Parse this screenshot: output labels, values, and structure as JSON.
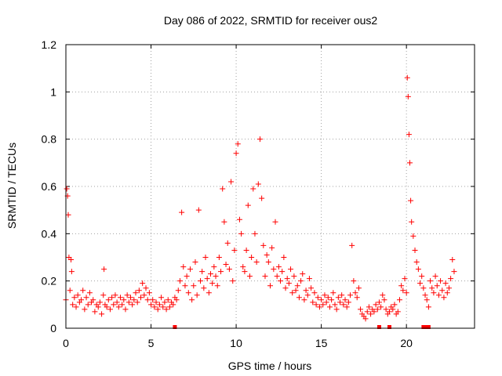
{
  "chart_data": {
    "type": "scatter",
    "title": "Day 086 of 2022, SRMTID for receiver ous2",
    "xlabel": "GPS time / hours",
    "ylabel": "SRMTID / TECUs",
    "xlim": [
      0,
      24
    ],
    "ylim": [
      0,
      1.2
    ],
    "x_ticks": [
      0,
      5,
      10,
      15,
      20
    ],
    "x_tick_labels": [
      "0",
      "5",
      "10",
      "15",
      "20"
    ],
    "y_ticks": [
      0,
      0.2,
      0.4,
      0.6,
      0.8,
      1.0,
      1.2
    ],
    "y_tick_labels": [
      "0",
      "0.2",
      "0.4",
      "0.6",
      "0.8",
      "1",
      "1.2"
    ],
    "grid": true,
    "series": [
      {
        "name": "SRMTID",
        "color": "#ff0000",
        "marker": "plus",
        "x": [
          0.0,
          0.05,
          0.1,
          0.14,
          0.18,
          0.24,
          0.3,
          0.34,
          0.4,
          0.5,
          0.6,
          0.7,
          0.8,
          0.9,
          1.0,
          1.1,
          1.2,
          1.3,
          1.4,
          1.5,
          1.6,
          1.7,
          1.8,
          1.9,
          2.0,
          2.1,
          2.2,
          2.24,
          2.3,
          2.4,
          2.5,
          2.6,
          2.7,
          2.8,
          2.9,
          3.0,
          3.1,
          3.2,
          3.3,
          3.4,
          3.5,
          3.6,
          3.7,
          3.8,
          3.9,
          4.0,
          4.1,
          4.2,
          4.3,
          4.4,
          4.5,
          4.6,
          4.7,
          4.8,
          4.9,
          5.0,
          5.1,
          5.2,
          5.3,
          5.4,
          5.5,
          5.6,
          5.7,
          5.8,
          5.9,
          6.0,
          6.1,
          6.2,
          6.3,
          6.4,
          6.5,
          6.6,
          6.7,
          6.8,
          6.9,
          7.0,
          7.1,
          7.2,
          7.3,
          7.4,
          7.5,
          7.6,
          7.7,
          7.8,
          7.9,
          8.0,
          8.1,
          8.2,
          8.3,
          8.4,
          8.5,
          8.6,
          8.7,
          8.8,
          8.9,
          9.0,
          9.1,
          9.2,
          9.3,
          9.4,
          9.5,
          9.6,
          9.7,
          9.8,
          9.9,
          10.0,
          10.1,
          10.2,
          10.3,
          10.4,
          10.5,
          10.6,
          10.7,
          10.8,
          10.9,
          11.0,
          11.1,
          11.2,
          11.3,
          11.4,
          11.5,
          11.6,
          11.7,
          11.8,
          11.9,
          12.0,
          12.1,
          12.2,
          12.3,
          12.4,
          12.5,
          12.6,
          12.7,
          12.8,
          12.9,
          13.0,
          13.1,
          13.2,
          13.3,
          13.4,
          13.5,
          13.6,
          13.7,
          13.8,
          13.9,
          14.0,
          14.1,
          14.2,
          14.3,
          14.4,
          14.5,
          14.6,
          14.7,
          14.8,
          14.9,
          15.0,
          15.1,
          15.2,
          15.3,
          15.4,
          15.5,
          15.6,
          15.7,
          15.8,
          15.9,
          16.0,
          16.1,
          16.2,
          16.3,
          16.4,
          16.5,
          16.6,
          16.7,
          16.8,
          16.9,
          17.0,
          17.1,
          17.2,
          17.3,
          17.4,
          17.5,
          17.6,
          17.7,
          17.8,
          17.9,
          18.0,
          18.1,
          18.2,
          18.3,
          18.4,
          18.5,
          18.6,
          18.7,
          18.8,
          18.9,
          19.0,
          19.1,
          19.2,
          19.3,
          19.4,
          19.5,
          19.6,
          19.7,
          19.8,
          19.9,
          20.0,
          20.05,
          20.1,
          20.15,
          20.2,
          20.25,
          20.3,
          20.4,
          20.5,
          20.6,
          20.7,
          20.8,
          20.9,
          21.0,
          21.1,
          21.2,
          21.3,
          21.4,
          21.5,
          21.6,
          21.7,
          21.8,
          21.9,
          22.0,
          22.1,
          22.2,
          22.3,
          22.4,
          22.5,
          22.6,
          22.7,
          22.8
        ],
        "y": [
          0.12,
          0.59,
          0.56,
          0.48,
          0.3,
          0.16,
          0.29,
          0.24,
          0.1,
          0.13,
          0.09,
          0.14,
          0.11,
          0.12,
          0.16,
          0.08,
          0.13,
          0.1,
          0.15,
          0.11,
          0.12,
          0.07,
          0.1,
          0.09,
          0.11,
          0.06,
          0.14,
          0.25,
          0.1,
          0.09,
          0.12,
          0.08,
          0.13,
          0.1,
          0.14,
          0.11,
          0.09,
          0.13,
          0.1,
          0.12,
          0.08,
          0.14,
          0.11,
          0.13,
          0.1,
          0.12,
          0.15,
          0.11,
          0.16,
          0.13,
          0.19,
          0.14,
          0.17,
          0.12,
          0.15,
          0.1,
          0.12,
          0.09,
          0.11,
          0.08,
          0.1,
          0.13,
          0.09,
          0.11,
          0.08,
          0.12,
          0.09,
          0.11,
          0.1,
          0.13,
          0.12,
          0.16,
          0.2,
          0.49,
          0.26,
          0.18,
          0.22,
          0.15,
          0.25,
          0.12,
          0.18,
          0.28,
          0.14,
          0.5,
          0.2,
          0.24,
          0.17,
          0.3,
          0.21,
          0.15,
          0.23,
          0.19,
          0.26,
          0.22,
          0.18,
          0.3,
          0.24,
          0.59,
          0.45,
          0.27,
          0.36,
          0.25,
          0.62,
          0.2,
          0.33,
          0.74,
          0.78,
          0.46,
          0.4,
          0.26,
          0.24,
          0.33,
          0.52,
          0.22,
          0.3,
          0.59,
          0.4,
          0.28,
          0.61,
          0.8,
          0.55,
          0.35,
          0.22,
          0.31,
          0.28,
          0.18,
          0.34,
          0.25,
          0.45,
          0.22,
          0.26,
          0.2,
          0.24,
          0.3,
          0.17,
          0.21,
          0.19,
          0.25,
          0.15,
          0.22,
          0.16,
          0.18,
          0.13,
          0.2,
          0.23,
          0.12,
          0.16,
          0.14,
          0.21,
          0.17,
          0.11,
          0.15,
          0.1,
          0.13,
          0.09,
          0.12,
          0.1,
          0.14,
          0.11,
          0.13,
          0.09,
          0.12,
          0.15,
          0.1,
          0.08,
          0.13,
          0.11,
          0.14,
          0.1,
          0.12,
          0.09,
          0.11,
          0.14,
          0.35,
          0.2,
          0.15,
          0.13,
          0.17,
          0.08,
          0.06,
          0.05,
          0.04,
          0.07,
          0.09,
          0.06,
          0.08,
          0.07,
          0.1,
          0.08,
          0.11,
          0.09,
          0.14,
          0.12,
          0.08,
          0.06,
          0.07,
          0.09,
          0.08,
          0.1,
          0.06,
          0.07,
          0.12,
          0.18,
          0.16,
          0.21,
          0.15,
          1.06,
          0.98,
          0.82,
          0.7,
          0.54,
          0.45,
          0.39,
          0.33,
          0.28,
          0.25,
          0.19,
          0.22,
          0.17,
          0.14,
          0.12,
          0.09,
          0.2,
          0.17,
          0.15,
          0.22,
          0.18,
          0.14,
          0.2,
          0.16,
          0.13,
          0.19,
          0.15,
          0.17,
          0.21,
          0.29,
          0.24
        ]
      }
    ],
    "baseline_markers": [
      6.4,
      18.4,
      19.0,
      21.0,
      21.2,
      21.3
    ]
  }
}
